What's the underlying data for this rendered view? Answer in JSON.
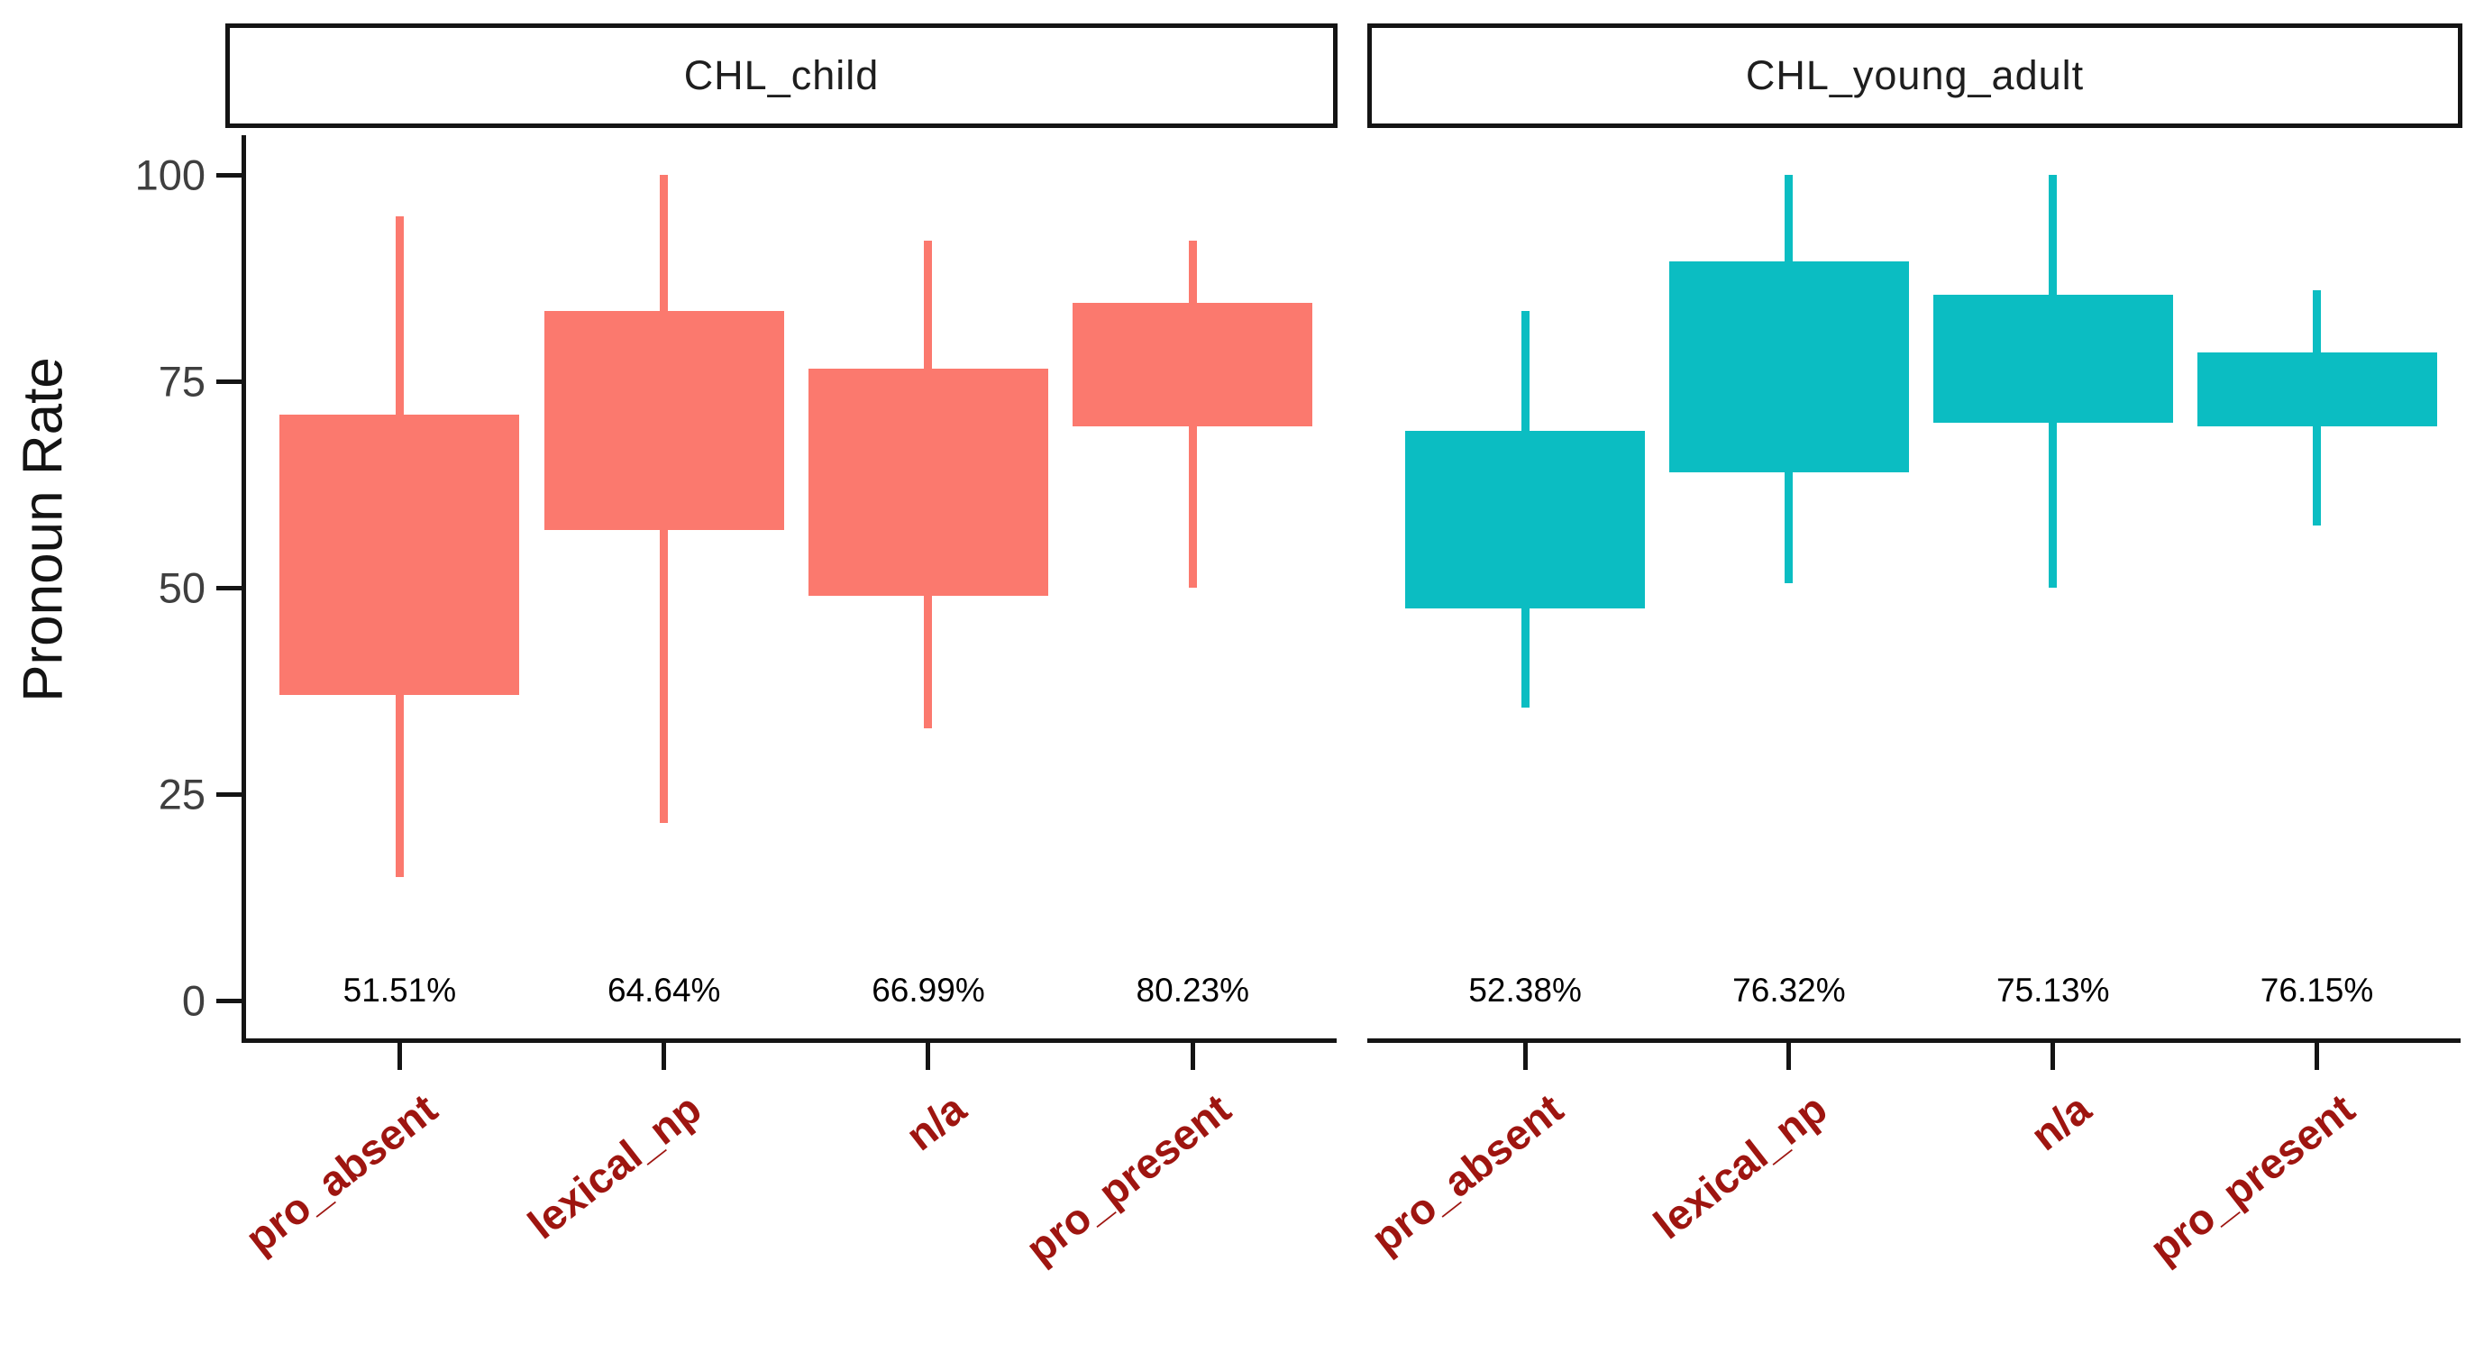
{
  "figure": {
    "background": "#ffffff",
    "axis_color": "#141414",
    "tick_label_color": "#3f3f3f"
  },
  "chart_data": {
    "type": "boxplot",
    "title": "",
    "xlabel": "",
    "ylabel": "Pronoun Rate",
    "ylim": [
      0,
      100
    ],
    "y_ticks": [
      0,
      25,
      50,
      75,
      100
    ],
    "grid": false,
    "legend": "none",
    "categories": [
      "pro_absent",
      "lexical_np",
      "n/a",
      "pro_present"
    ],
    "category_label_color": "#9e1510",
    "category_label_angle_deg": 38,
    "facets": [
      {
        "title": "CHL_child",
        "color": "#FB796E",
        "boxes": [
          {
            "category": "pro_absent",
            "whisker_low": 15,
            "q1": 37,
            "q3": 71,
            "whisker_high": 95,
            "pct_label": "51.51%"
          },
          {
            "category": "lexical_np",
            "whisker_low": 21.5,
            "q1": 57,
            "q3": 83.5,
            "whisker_high": 100,
            "pct_label": "64.64%"
          },
          {
            "category": "n/a",
            "whisker_low": 33,
            "q1": 49,
            "q3": 76.5,
            "whisker_high": 92,
            "pct_label": "66.99%"
          },
          {
            "category": "pro_present",
            "whisker_low": 50,
            "q1": 69.5,
            "q3": 84.5,
            "whisker_high": 92,
            "pct_label": "80.23%"
          }
        ]
      },
      {
        "title": "CHL_young_adult",
        "color": "#0BBDC2",
        "boxes": [
          {
            "category": "pro_absent",
            "whisker_low": 35.5,
            "q1": 47.5,
            "q3": 69,
            "whisker_high": 83.5,
            "pct_label": "52.38%"
          },
          {
            "category": "lexical_np",
            "whisker_low": 50.5,
            "q1": 64,
            "q3": 89.5,
            "whisker_high": 100,
            "pct_label": "76.32%"
          },
          {
            "category": "n/a",
            "whisker_low": 50,
            "q1": 70,
            "q3": 85.5,
            "whisker_high": 100,
            "pct_label": "75.13%"
          },
          {
            "category": "pro_present",
            "whisker_low": 57.5,
            "q1": 69.5,
            "q3": 78.5,
            "whisker_high": 86,
            "pct_label": "76.15%"
          }
        ]
      }
    ]
  }
}
